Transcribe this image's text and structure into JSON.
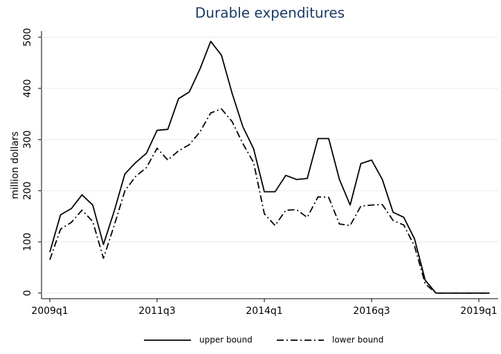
{
  "chart_data": {
    "type": "line",
    "title": "Durable expenditures",
    "y_label": "million dollars",
    "categories": [
      "2009q1",
      null,
      null,
      null,
      null,
      null,
      null,
      null,
      null,
      null,
      "2011q3",
      null,
      null,
      null,
      null,
      null,
      null,
      null,
      null,
      null,
      "2014q1",
      null,
      null,
      null,
      null,
      null,
      null,
      null,
      null,
      null,
      "2016q3",
      null,
      null,
      null,
      null,
      null,
      null,
      null,
      null,
      null,
      "2019q1",
      null
    ],
    "series": [
      {
        "name": "upper bound",
        "color": "#000000",
        "line_style": "solid",
        "values": [
          80,
          153,
          165,
          192,
          172,
          95,
          160,
          233,
          255,
          273,
          318,
          320,
          380,
          393,
          438,
          492,
          465,
          390,
          325,
          282,
          198,
          198,
          230,
          222,
          224,
          302,
          302,
          222,
          172,
          253,
          260,
          222,
          158,
          148,
          106,
          25,
          0,
          0,
          0,
          0,
          0,
          0
        ]
      },
      {
        "name": "lower bound",
        "color": "#000000",
        "line_style": "dashdot",
        "values": [
          65,
          125,
          138,
          162,
          140,
          68,
          132,
          200,
          228,
          245,
          283,
          260,
          278,
          290,
          315,
          352,
          360,
          335,
          292,
          255,
          155,
          132,
          162,
          163,
          148,
          188,
          187,
          135,
          132,
          170,
          172,
          173,
          142,
          133,
          92,
          18,
          0,
          0,
          0,
          0,
          0,
          0
        ]
      }
    ],
    "ylim": [
      -11,
      512
    ],
    "yticks": [
      0,
      100,
      200,
      300,
      400,
      500
    ],
    "grid": true,
    "legend": "bottom"
  }
}
